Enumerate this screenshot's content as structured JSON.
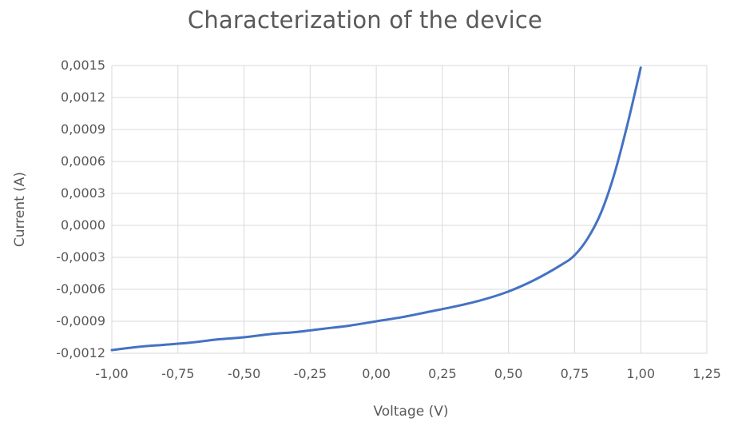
{
  "chart_data": {
    "type": "line",
    "title": "Characterization of the device",
    "xlabel": "Voltage (V)",
    "ylabel": "Current (A)",
    "xlim": [
      -1.0,
      1.25
    ],
    "ylim": [
      -0.0012,
      0.0015
    ],
    "grid": true,
    "legend": "none",
    "x_ticks": [
      -1.0,
      -0.75,
      -0.5,
      -0.25,
      0.0,
      0.25,
      0.5,
      0.75,
      1.0,
      1.25
    ],
    "x_tick_labels": [
      "-1,00",
      "-0,75",
      "-0,50",
      "-0,25",
      "0,00",
      "0,25",
      "0,50",
      "0,75",
      "1,00",
      "1,25"
    ],
    "y_ticks": [
      0.0015,
      0.0012,
      0.0009,
      0.0006,
      0.0003,
      0.0,
      -0.0003,
      -0.0006,
      -0.0009,
      -0.0012
    ],
    "y_tick_labels": [
      "0,0015",
      "0,0012",
      "0,0009",
      "0,0006",
      "0,0003",
      "0,0000",
      "-0,0003",
      "-0,0006",
      "-0,0009",
      "-0,0012"
    ],
    "series": [
      {
        "color": "#4472C4",
        "x": [
          -1.0,
          -0.9,
          -0.8,
          -0.7,
          -0.6,
          -0.5,
          -0.4,
          -0.3,
          -0.2,
          -0.1,
          0.0,
          0.1,
          0.2,
          0.3,
          0.4,
          0.5,
          0.6,
          0.7,
          0.75,
          0.8,
          0.85,
          0.9,
          0.95,
          1.0
        ],
        "y": [
          -0.00117,
          -0.00114,
          -0.00112,
          -0.0011,
          -0.00107,
          -0.00105,
          -0.00102,
          -0.001,
          -0.00097,
          -0.00094,
          -0.0009,
          -0.00086,
          -0.00081,
          -0.00076,
          -0.0007,
          -0.00062,
          -0.00051,
          -0.00037,
          -0.00028,
          -0.00012,
          0.00012,
          0.00048,
          0.00095,
          0.00148
        ]
      }
    ]
  },
  "colors": {
    "series_line": "#4472C4",
    "gridline": "#D9D9D9",
    "text": "#595959"
  }
}
